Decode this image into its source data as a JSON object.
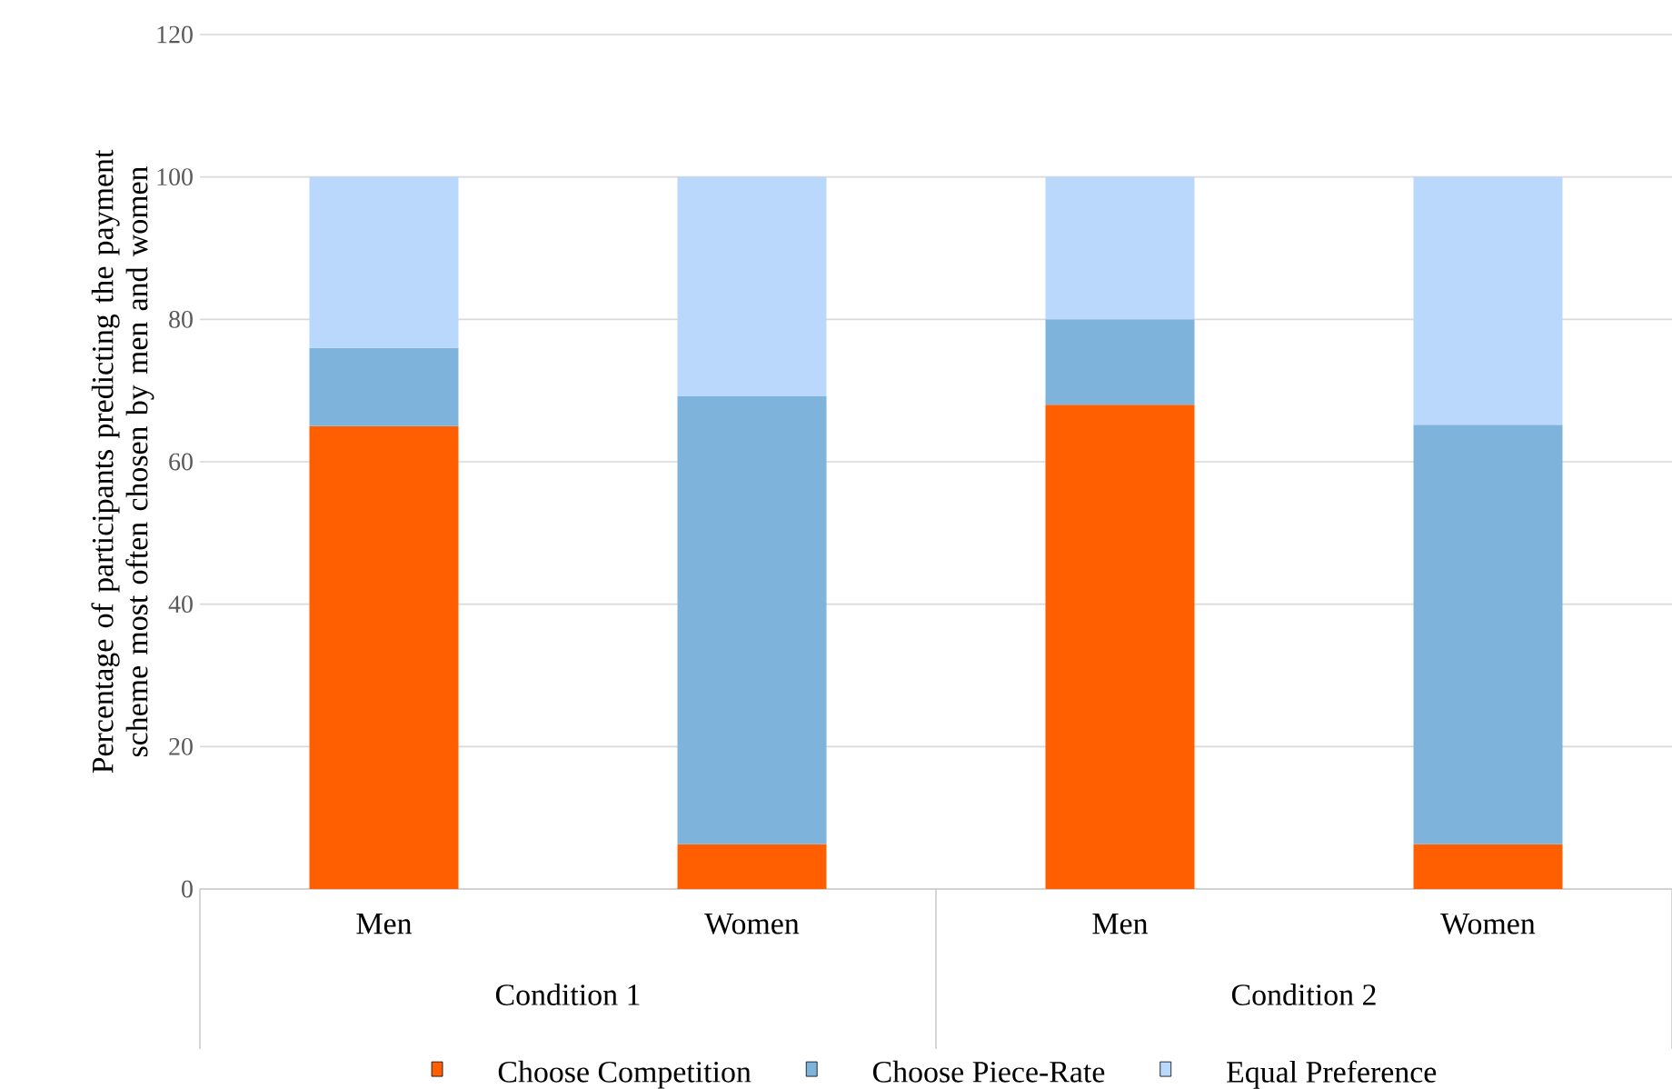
{
  "chart_data": {
    "type": "bar",
    "stacked": true,
    "ylabel": "Percentage of participants predicting the payment scheme most often chosen by men and women",
    "categories": [
      "Men",
      "Women",
      "Men",
      "Women"
    ],
    "annotations": [
      "Condition 1",
      "Condition 2"
    ],
    "series": [
      {
        "name": "Choose Competition",
        "color": "#ff5f00",
        "values": [
          65,
          6.3,
          68,
          6.3
        ]
      },
      {
        "name": "Choose Piece-Rate",
        "color": "#7eb4dc",
        "values": [
          11,
          62.9,
          12,
          58.9
        ]
      },
      {
        "name": "Equal Preference",
        "color": "#b9d8fb",
        "values": [
          24,
          30.8,
          20,
          34.8
        ]
      }
    ],
    "ylim": [
      0,
      120
    ],
    "yticks": [
      0,
      20,
      40,
      60,
      80,
      100,
      120
    ],
    "grid": "y",
    "legend": "bottom"
  }
}
